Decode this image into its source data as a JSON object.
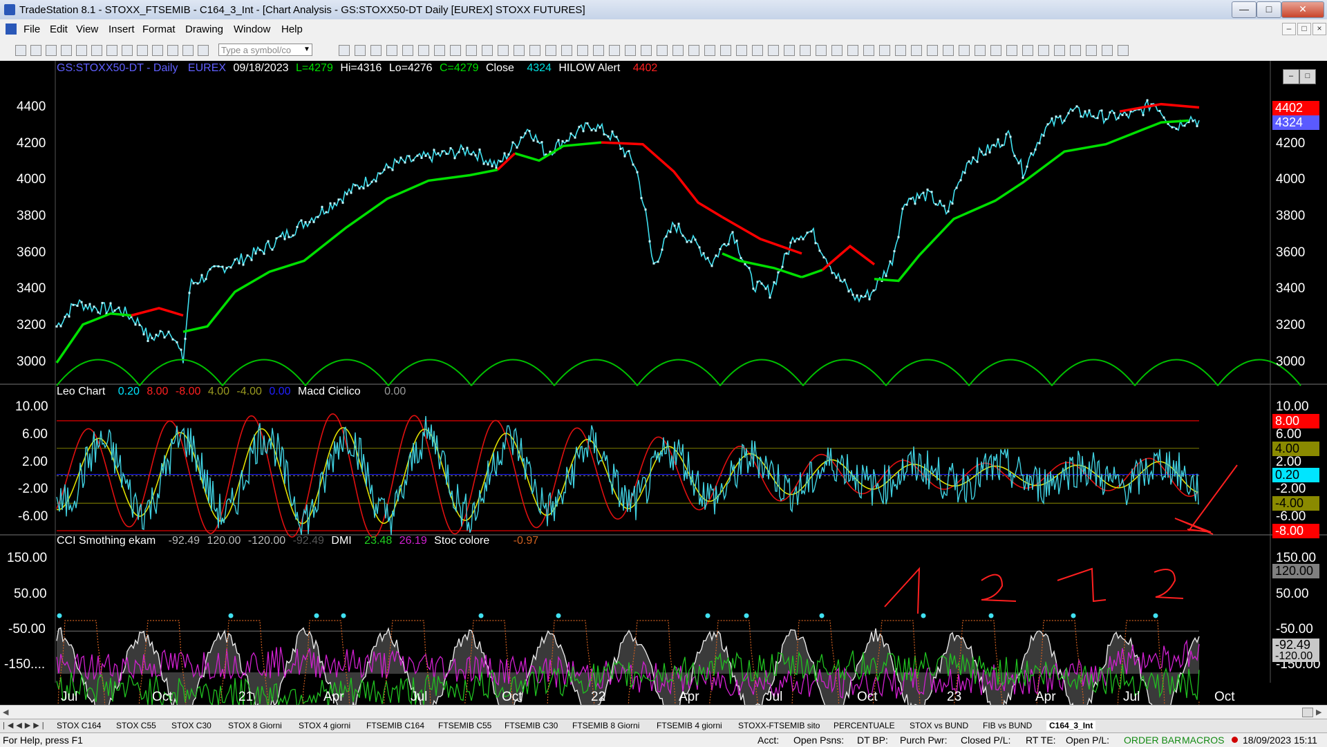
{
  "window": {
    "title": "TradeStation 8.1 - STOXX_FTSEMIB - C164_3_Int - [Chart Analysis - GS:STOXX50-DT  Daily  [EUREX] STOXX FUTURES]"
  },
  "menu": [
    "File",
    "Edit",
    "View",
    "Insert",
    "Format",
    "Drawing",
    "Window",
    "Help"
  ],
  "toolbar": {
    "symbol_placeholder": "Type a symbol/co"
  },
  "price_header": {
    "symbol": "GS:STOXX50-DT - Daily",
    "exchange": "EUREX",
    "date": "09/18/2023",
    "last": "L=4279",
    "hi": "Hi=4316",
    "lo": "Lo=4276",
    "close": "C=4279",
    "close_label": "Close",
    "close_val": "4324",
    "alert_label": "HILOW Alert",
    "alert_val": "4402"
  },
  "macd_header": {
    "name": "Leo Chart",
    "v1": "0.20",
    "v2": "8.00",
    "v3": "-8.00",
    "v4": "4.00",
    "v5": "-4.00",
    "v6": "0.00",
    "name2": "Macd Ciclico",
    "v7": "0.00"
  },
  "cci_header": {
    "name": "CCI Smothing ekam",
    "v1": "-92.49",
    "v2": "120.00",
    "v3": "-120.00",
    "v4": "-92.49",
    "name2": "DMI",
    "v5": "23.48",
    "v6": "26.19",
    "name3": "Stoc colore",
    "v7": "-0.97"
  },
  "price_axis": [
    "4400",
    "4200",
    "4000",
    "3800",
    "3600",
    "3400",
    "3200",
    "3000"
  ],
  "macd_axis": [
    "10.00",
    "6.00",
    "2.00",
    "-2.00",
    "-6.00"
  ],
  "macd_axis_right": [
    "10.00",
    "6.00",
    "2.00",
    "-2.00",
    "-6.00"
  ],
  "cci_axis": [
    "150.00",
    "50.00",
    "-50.00",
    "-150...."
  ],
  "cci_axis_right": [
    "150.00",
    "50.00",
    "-50.00",
    "-150.00"
  ],
  "price_tags": [
    {
      "text": "4402",
      "bg": "#ff0000",
      "fg": "#ffffff"
    },
    {
      "text": "4324",
      "bg": "#5a5aff",
      "fg": "#ffffff"
    }
  ],
  "macd_tags": [
    {
      "text": "8.00",
      "bg": "#ff0000",
      "fg": "#ffffff"
    },
    {
      "text": "4.00",
      "bg": "#8a8a00",
      "fg": "#000000"
    },
    {
      "text": "0.20",
      "bg": "#00e5ff",
      "fg": "#000000"
    },
    {
      "text": "-4.00",
      "bg": "#8a8a00",
      "fg": "#000000"
    },
    {
      "text": "-8.00",
      "bg": "#ff0000",
      "fg": "#ffffff"
    }
  ],
  "cci_tags": [
    {
      "text": "120.00",
      "bg": "#808080",
      "fg": "#000000"
    },
    {
      "text": "-92.49",
      "bg": "#c8c8c8",
      "fg": "#000000"
    },
    {
      "text": "-120.00",
      "bg": "#c8c8c8",
      "fg": "#000000"
    }
  ],
  "x_axis": [
    "Jul",
    "Oct",
    "21",
    "Apr",
    "Jul",
    "Oct",
    "22",
    "Apr",
    "Jul",
    "Oct",
    "23",
    "Apr",
    "Jul",
    "Oct"
  ],
  "tabs": [
    "STOX C164",
    "STOX C55",
    "STOX  C30",
    "STOX  8 Giorni",
    "STOX 4 giorni",
    "FTSEMIB C164",
    "FTSEMIB C55",
    "FTSEMIB C30",
    "FTSEMIB  8 Giorni",
    "FTSEMIB  4 giorni",
    "STOXX-FTSEMIB sito",
    "PERCENTUALE",
    "STOX vs BUND",
    "FIB vs BUND",
    "C164_3_Int"
  ],
  "status": {
    "help": "For Help, press F1",
    "acct": "Acct:",
    "open_psns": "Open Psns:",
    "dt_bp": "DT BP:",
    "purch_pwr": "Purch Pwr:",
    "closed_pl": "Closed P/L:",
    "rt_te": "RT TE:",
    "open_pl": "Open P/L:",
    "order_bar": "ORDER BAR",
    "macros": "MACROS",
    "datetime": "18/09/2023 15:11"
  },
  "colors": {
    "price": "#3fe0f0",
    "avg_up": "#00e000",
    "avg_down": "#ff0000",
    "cycle": "#00c000",
    "osc_red": "#e01010",
    "osc_yellow": "#e0e000",
    "osc_cyan": "#40d0e0",
    "dmi_magenta": "#d020d0",
    "dmi_green": "#20c020",
    "stoch": "#d06020"
  },
  "annotations": {
    "marks": [
      "1",
      "2",
      "1",
      "2"
    ]
  }
}
